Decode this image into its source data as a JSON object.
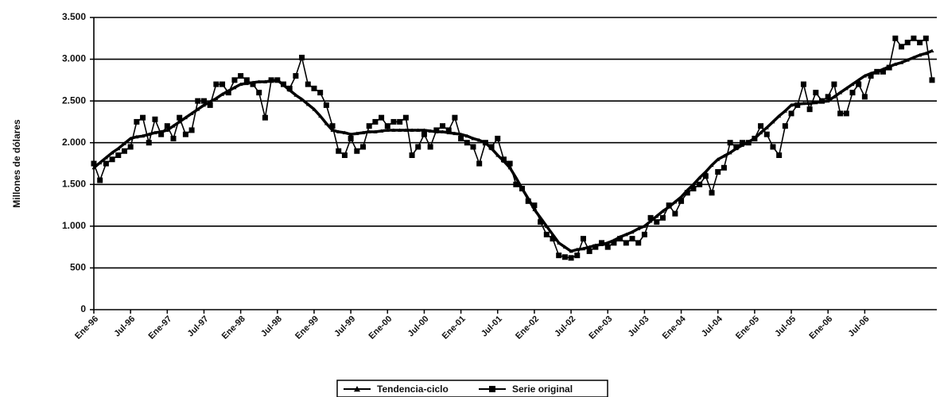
{
  "chart_data": {
    "type": "line",
    "ylabel": "Millones de dólares",
    "categories": [
      "Ene-96",
      null,
      null,
      null,
      null,
      null,
      "Jul-96",
      null,
      null,
      null,
      null,
      null,
      "Ene-97",
      null,
      null,
      null,
      null,
      null,
      "Jul-97",
      null,
      null,
      null,
      null,
      null,
      "Ene-98",
      null,
      null,
      null,
      null,
      null,
      "Jul-98",
      null,
      null,
      null,
      null,
      null,
      "Ene-99",
      null,
      null,
      null,
      null,
      null,
      "Jul-99",
      null,
      null,
      null,
      null,
      null,
      "Ene-00",
      null,
      null,
      null,
      null,
      null,
      "Jul-00",
      null,
      null,
      null,
      null,
      null,
      "Ene-01",
      null,
      null,
      null,
      null,
      null,
      "Jul-01",
      null,
      null,
      null,
      null,
      null,
      "Ene-02",
      null,
      null,
      null,
      null,
      null,
      "Jul-02",
      null,
      null,
      null,
      null,
      null,
      "Ene-03",
      null,
      null,
      null,
      null,
      null,
      "Jul-03",
      null,
      null,
      null,
      null,
      null,
      "Ene-04",
      null,
      null,
      null,
      null,
      null,
      "Jul-04",
      null,
      null,
      null,
      null,
      null,
      "Ene-05",
      null,
      null,
      null,
      null,
      null,
      "Jul-05",
      null,
      null,
      null,
      null,
      null,
      "Ene-06",
      null,
      null,
      null,
      null,
      null,
      "Jul-06",
      null,
      null,
      null,
      null,
      null,
      null,
      null,
      null,
      null,
      null,
      null
    ],
    "series": [
      {
        "name": "Tendencia-ciclo",
        "color": "#000000",
        "marker": "triangle",
        "values": [
          1700,
          1760,
          1820,
          1880,
          1930,
          1990,
          2050,
          2070,
          2080,
          2100,
          2120,
          2130,
          2150,
          2200,
          2250,
          2300,
          2350,
          2400,
          2450,
          2490,
          2530,
          2580,
          2620,
          2660,
          2700,
          2710,
          2720,
          2730,
          2730,
          2740,
          2750,
          2690,
          2630,
          2570,
          2520,
          2460,
          2400,
          2320,
          2230,
          2150,
          2130,
          2120,
          2100,
          2110,
          2120,
          2130,
          2130,
          2140,
          2150,
          2150,
          2150,
          2150,
          2150,
          2150,
          2150,
          2140,
          2130,
          2130,
          2120,
          2110,
          2100,
          2080,
          2050,
          2030,
          2000,
          1930,
          1850,
          1780,
          1700,
          1580,
          1450,
          1330,
          1200,
          1100,
          1000,
          900,
          800,
          750,
          700,
          720,
          730,
          750,
          770,
          780,
          800,
          830,
          870,
          900,
          930,
          970,
          1000,
          1060,
          1120,
          1180,
          1230,
          1290,
          1350,
          1430,
          1500,
          1580,
          1650,
          1730,
          1800,
          1840,
          1880,
          1930,
          1970,
          2010,
          2050,
          2120,
          2180,
          2250,
          2320,
          2380,
          2450,
          2460,
          2470,
          2470,
          2480,
          2490,
          2500,
          2550,
          2600,
          2650,
          2700,
          2750,
          2800,
          2830,
          2850,
          2880,
          2910,
          2940,
          2960,
          2990,
          3020,
          3050,
          3070,
          3100
        ]
      },
      {
        "name": "Serie original",
        "color": "#000000",
        "marker": "square",
        "values": [
          1750,
          1550,
          1750,
          1800,
          1850,
          1900,
          1950,
          2250,
          2300,
          2000,
          2280,
          2100,
          2200,
          2050,
          2300,
          2100,
          2150,
          2500,
          2500,
          2450,
          2700,
          2700,
          2600,
          2750,
          2800,
          2750,
          2700,
          2600,
          2300,
          2750,
          2750,
          2700,
          2650,
          2800,
          3020,
          2700,
          2650,
          2600,
          2450,
          2200,
          1900,
          1850,
          2050,
          1900,
          1950,
          2200,
          2250,
          2300,
          2200,
          2250,
          2250,
          2300,
          1850,
          1950,
          2100,
          1950,
          2150,
          2200,
          2150,
          2300,
          2050,
          2000,
          1950,
          1750,
          2000,
          1950,
          2050,
          1800,
          1750,
          1500,
          1450,
          1300,
          1250,
          1050,
          900,
          850,
          650,
          630,
          620,
          650,
          850,
          700,
          750,
          800,
          750,
          800,
          850,
          800,
          850,
          800,
          900,
          1100,
          1050,
          1100,
          1250,
          1150,
          1300,
          1400,
          1450,
          1500,
          1600,
          1400,
          1650,
          1700,
          2000,
          1950,
          2000,
          2000,
          2050,
          2200,
          2100,
          1950,
          1850,
          2200,
          2350,
          2450,
          2700,
          2400,
          2600,
          2500,
          2550,
          2700,
          2350,
          2350,
          2600,
          2700,
          2550,
          2800,
          2850,
          2850,
          2900,
          3250,
          3150,
          3200,
          3250,
          3200,
          3250,
          2750
        ]
      }
    ],
    "ylim": [
      0,
      3500
    ],
    "yticks": [
      0,
      {
        "value": 500,
        "label": "500"
      },
      {
        "value": 1000,
        "label": "1.000"
      },
      {
        "value": 1500,
        "label": "1.500"
      },
      {
        "value": 2000,
        "label": "2.000"
      },
      {
        "value": 2500,
        "label": "2.500"
      },
      {
        "value": 3000,
        "label": "3.000"
      },
      {
        "value": 3500,
        "label": "3.500"
      }
    ],
    "grid": true,
    "legend": "bottom"
  }
}
